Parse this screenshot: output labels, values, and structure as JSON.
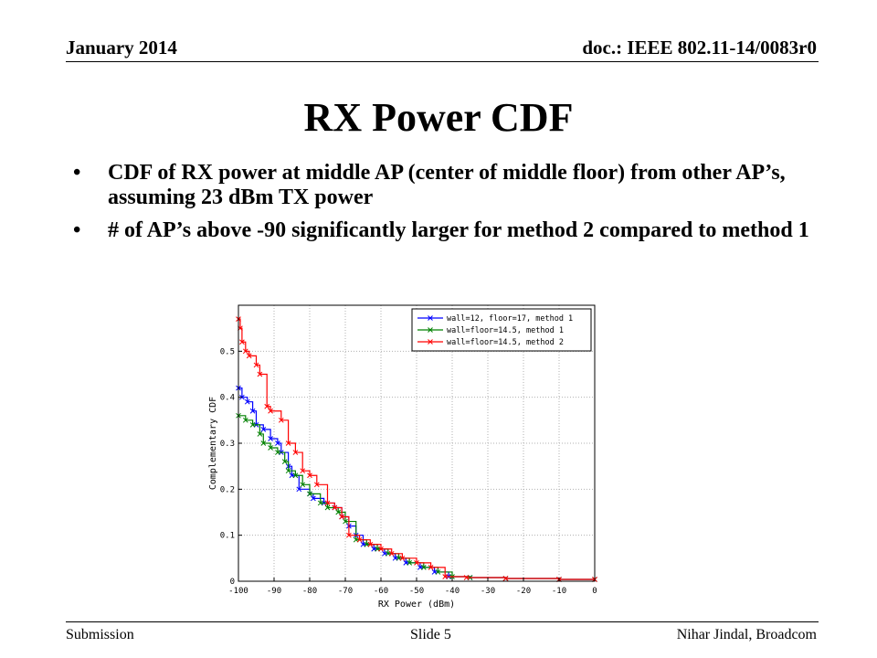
{
  "header": {
    "date": "January 2014",
    "doc_id": "doc.: IEEE 802.11-14/0083r0"
  },
  "slide_title": "RX Power CDF",
  "bullets": [
    {
      "marker": "•",
      "text": "CDF of RX power at middle AP (center of middle floor) from other AP’s, assuming 23 dBm TX power"
    },
    {
      "marker": "•",
      "text": "# of AP’s above -90 significantly larger for method 2 compared to method 1"
    }
  ],
  "footer": {
    "left": "Submission",
    "center": "Slide 5",
    "right": "Nihar Jindal, Broadcom"
  },
  "chart_data": {
    "type": "line",
    "title": "",
    "xlabel": "RX Power (dBm)",
    "ylabel": "Complementary CDF",
    "xlim": [
      -100,
      0
    ],
    "ylim": [
      0,
      0.6
    ],
    "x_ticks": [
      "-100",
      "-90",
      "-80",
      "-70",
      "-60",
      "-50",
      "-40",
      "-30",
      "-20",
      "-10",
      "0"
    ],
    "y_ticks": [
      "0",
      "0.1",
      "0.2",
      "0.3",
      "0.4",
      "0.5"
    ],
    "grid": true,
    "legend_position": "top-right",
    "series": [
      {
        "name": "wall=12, floor=17, method 1",
        "color": "#0000ff",
        "x": [
          -100,
          -99,
          -97.5,
          -96,
          -95,
          -93,
          -91,
          -89,
          -88,
          -86,
          -85,
          -83,
          -80,
          -79,
          -76,
          -73,
          -71,
          -69,
          -67,
          -65,
          -62,
          -59,
          -56,
          -53,
          -49,
          -45,
          -41,
          -35,
          -25,
          -10,
          0
        ],
        "y": [
          0.42,
          0.4,
          0.39,
          0.37,
          0.34,
          0.33,
          0.31,
          0.3,
          0.28,
          0.25,
          0.23,
          0.2,
          0.19,
          0.18,
          0.17,
          0.16,
          0.14,
          0.12,
          0.1,
          0.08,
          0.07,
          0.06,
          0.05,
          0.04,
          0.03,
          0.02,
          0.01,
          0.008,
          0.006,
          0.004,
          0.004
        ]
      },
      {
        "name": "wall=floor=14.5, method 1",
        "color": "#008000",
        "x": [
          -100,
          -98,
          -96,
          -94,
          -93,
          -91,
          -89,
          -87,
          -86,
          -84,
          -82,
          -80,
          -77,
          -75,
          -72,
          -70,
          -67,
          -64,
          -61,
          -58,
          -55,
          -52,
          -48,
          -44,
          -40,
          -35,
          -25,
          -10,
          0
        ],
        "y": [
          0.36,
          0.35,
          0.34,
          0.32,
          0.3,
          0.29,
          0.28,
          0.26,
          0.24,
          0.23,
          0.21,
          0.19,
          0.17,
          0.16,
          0.15,
          0.13,
          0.09,
          0.08,
          0.07,
          0.06,
          0.05,
          0.04,
          0.03,
          0.02,
          0.01,
          0.008,
          0.006,
          0.004,
          0.004
        ]
      },
      {
        "name": "wall=floor=14.5, method 2",
        "color": "#ff0000",
        "x": [
          -100,
          -99.5,
          -99,
          -98,
          -97,
          -95,
          -94,
          -92,
          -91,
          -88,
          -86,
          -84,
          -82,
          -80,
          -78,
          -75,
          -73,
          -71,
          -69,
          -66,
          -63,
          -60,
          -57,
          -54,
          -50,
          -46,
          -42,
          -36,
          -25,
          -10,
          0
        ],
        "y": [
          0.57,
          0.55,
          0.52,
          0.5,
          0.49,
          0.47,
          0.45,
          0.38,
          0.37,
          0.35,
          0.3,
          0.28,
          0.24,
          0.23,
          0.21,
          0.17,
          0.16,
          0.14,
          0.1,
          0.09,
          0.08,
          0.07,
          0.06,
          0.05,
          0.04,
          0.03,
          0.01,
          0.008,
          0.006,
          0.004,
          0.004
        ]
      }
    ]
  }
}
